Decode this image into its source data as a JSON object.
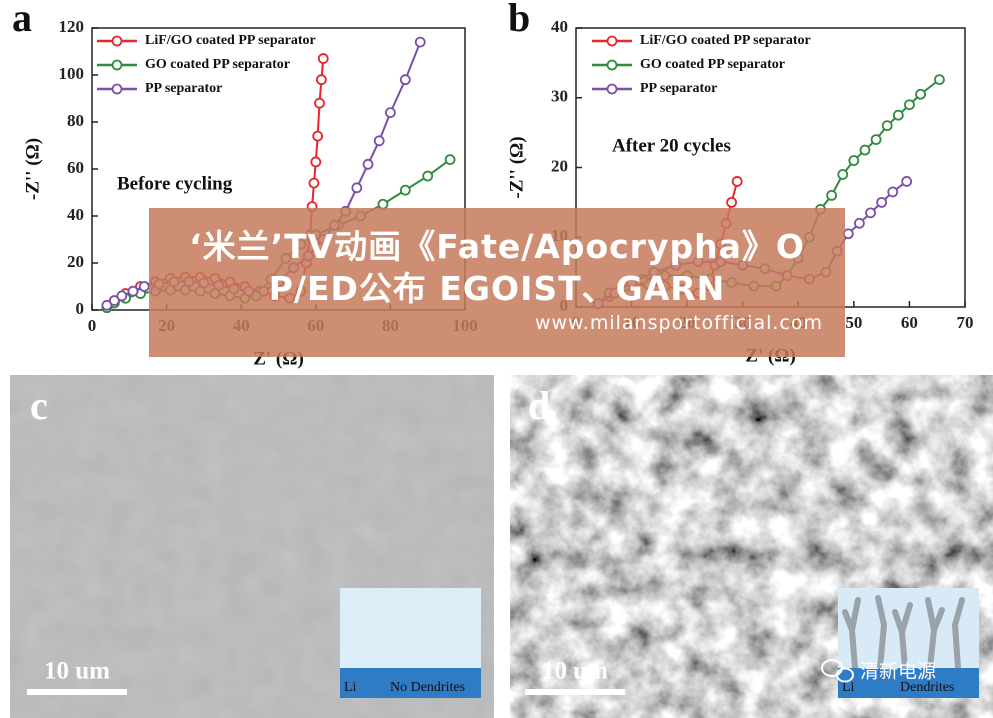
{
  "chart_data": [
    {
      "type": "line",
      "panel_label": "a",
      "xlabel": "Z' (Ω)",
      "ylabel": "-Z'' (Ω)",
      "annotation": "Before cycling",
      "xlim": [
        0,
        100
      ],
      "xticks": [
        0,
        20,
        40,
        60,
        80,
        100
      ],
      "ylim": [
        0,
        120
      ],
      "yticks": [
        0,
        20,
        40,
        60,
        80,
        100,
        120
      ],
      "series": [
        {
          "name": "LiF/GO coated PP separator",
          "color": "#e5262b",
          "x": [
            4,
            6,
            9,
            13,
            17,
            21,
            25,
            29,
            33,
            37,
            41,
            45,
            49,
            53,
            56,
            57.5,
            58.5,
            59,
            59.5,
            60,
            60.5,
            61,
            61.5,
            62
          ],
          "values": [
            1,
            4,
            7,
            10,
            12,
            13.5,
            14,
            14,
            13.5,
            12,
            10,
            8,
            6,
            5,
            8,
            20,
            32,
            44,
            54,
            63,
            74,
            88,
            98,
            107
          ]
        },
        {
          "name": "GO coated PP separator",
          "color": "#2e8b3e",
          "x": [
            4,
            6,
            9,
            13,
            17,
            21,
            25,
            29,
            33,
            37,
            41,
            44,
            48,
            52,
            56,
            60,
            66,
            72,
            78,
            84,
            90,
            96
          ],
          "values": [
            1,
            3,
            5,
            7,
            8,
            8.5,
            8.5,
            8,
            7,
            6,
            5,
            6,
            13,
            22,
            28,
            32,
            36,
            40,
            45,
            51,
            57,
            64
          ]
        },
        {
          "name": "PP separator",
          "color": "#7a4fa8",
          "x": [
            4,
            6,
            8,
            11,
            14,
            18,
            22,
            26,
            30,
            34,
            38,
            42,
            46,
            50,
            54,
            58,
            62,
            65,
            68,
            71,
            74,
            77,
            80,
            84,
            88
          ],
          "values": [
            2,
            4,
            6,
            8,
            10,
            11,
            12,
            12,
            11.5,
            10.5,
            9,
            8,
            8,
            12,
            18,
            23,
            30,
            36,
            42,
            52,
            62,
            72,
            84,
            98,
            114
          ]
        }
      ]
    },
    {
      "type": "line",
      "panel_label": "b",
      "xlabel": "Z' (Ω)",
      "ylabel": "-Z'' (Ω)",
      "annotation": "After 20 cycles",
      "xlim": [
        0,
        70
      ],
      "xticks": [
        0,
        10,
        20,
        30,
        40,
        50,
        60,
        70
      ],
      "ylim": [
        0,
        40
      ],
      "yticks": [
        0,
        10,
        20,
        30,
        40
      ],
      "series": [
        {
          "name": "LiF/GO coated PP separator",
          "color": "#e5262b",
          "x": [
            4,
            6,
            8,
            10,
            13,
            16,
            19,
            22,
            24,
            25,
            26,
            27,
            28,
            29
          ],
          "values": [
            0.5,
            1.5,
            2.5,
            3,
            3.3,
            3,
            2.5,
            2,
            3,
            6,
            9,
            12,
            15,
            18
          ]
        },
        {
          "name": "GO coated PP separator",
          "color": "#2e8b3e",
          "x": [
            4,
            6,
            9,
            12,
            16,
            20,
            24,
            28,
            32,
            36,
            38,
            40,
            42,
            44,
            46,
            48,
            50,
            52,
            54,
            56,
            58,
            60,
            62,
            65.4
          ],
          "values": [
            0.5,
            2,
            3,
            4,
            4.5,
            4.5,
            4,
            3.5,
            3,
            3,
            4.5,
            7,
            10,
            14,
            16,
            19,
            21,
            22.5,
            24,
            26,
            27.5,
            29,
            30.5,
            32.6
          ]
        },
        {
          "name": "PP separator",
          "color": "#7a4fa8",
          "x": [
            4,
            7,
            10,
            14,
            18,
            22,
            26,
            30,
            34,
            38,
            42,
            45,
            47,
            49,
            51,
            53,
            55,
            57,
            59.5
          ],
          "values": [
            0.5,
            2,
            3.5,
            5,
            6,
            6.5,
            6.5,
            6,
            5.5,
            4.5,
            4,
            5,
            8,
            10.5,
            12,
            13.5,
            15,
            16.5,
            18
          ]
        }
      ]
    }
  ],
  "panels": [
    {
      "label": "c",
      "scale_bar": "10 um",
      "inset": [
        "Li",
        "No Dendrites"
      ]
    },
    {
      "label": "d",
      "scale_bar": "10 um",
      "inset": [
        "Li",
        "Dendrites"
      ]
    }
  ],
  "banner": {
    "title": "‘米兰’TV动画《Fate/Apocrypha》OP/ED公布 EGOIST、GARN",
    "url": "www.milansportofficial.com"
  },
  "watermark": "清新电源"
}
